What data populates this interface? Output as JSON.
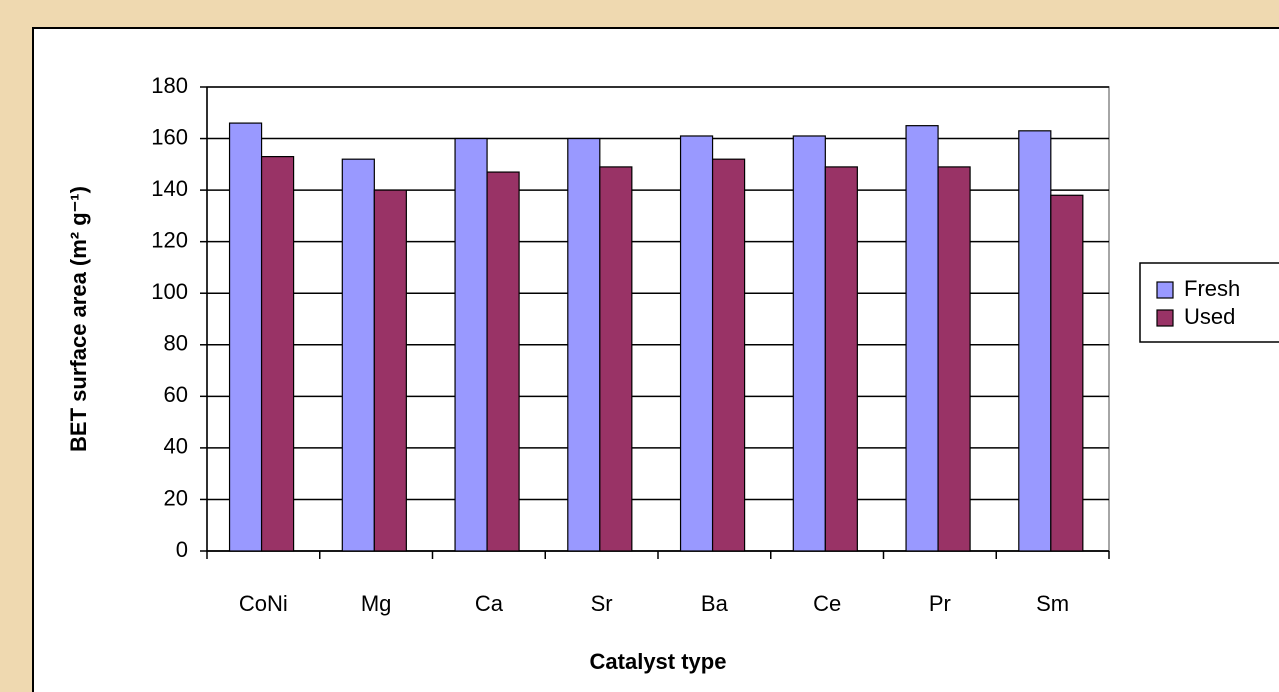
{
  "chart_data": {
    "type": "bar",
    "x_label": "Catalyst type",
    "y_label": "BET surface area (m² g⁻¹)",
    "categories": [
      "CoNi",
      "Mg",
      "Ca",
      "Sr",
      "Ba",
      "Ce",
      "Pr",
      "Sm"
    ],
    "series": [
      {
        "name": "Fresh",
        "color": "#9999ff",
        "values": [
          166,
          152,
          160,
          160,
          161,
          161,
          165,
          163
        ]
      },
      {
        "name": "Used",
        "color": "#993366",
        "values": [
          153,
          140,
          147,
          149,
          152,
          149,
          149,
          138
        ]
      }
    ],
    "ylim": [
      0,
      180
    ],
    "yticks": [
      0,
      20,
      40,
      60,
      80,
      100,
      120,
      140,
      160,
      180
    ],
    "grid": true,
    "legend": "right"
  }
}
